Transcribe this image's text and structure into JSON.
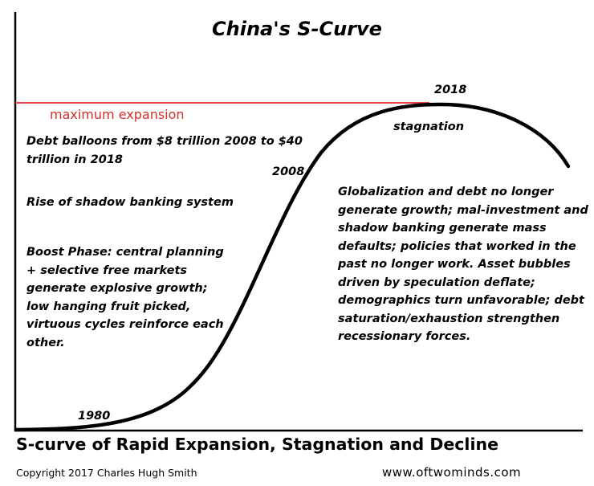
{
  "title": "China's S-Curve",
  "labels": {
    "max_expansion": "maximum expansion",
    "year_1980": "1980",
    "year_2008": "2008",
    "year_2018": "2018",
    "stagnation": "stagnation"
  },
  "annotations": {
    "debt": "Debt balloons from $8 trillion 2008 to $40 trillion in 2018",
    "shadow_banking": "Rise of shadow banking system",
    "boost": "Boost Phase: central planning + selective free markets generate explosive growth; low hanging fruit picked, virtuous cycles reinforce each other.",
    "decline": "Globalization and debt no longer generate growth; mal-investment and shadow banking generate mass defaults; policies that worked in the past no longer work. Asset bubbles driven by speculation deflate; demographics turn unfavorable; debt saturation/exhaustion strengthen recessionary forces."
  },
  "footer": {
    "subtitle": "S-curve of Rapid Expansion, Stagnation and Decline",
    "copyright": "Copyright 2017 Charles Hugh Smith",
    "website": "www.oftwominds.com"
  },
  "colors": {
    "max_line": "#e0464a",
    "max_text": "#d0312d",
    "curve": "#000000"
  }
}
